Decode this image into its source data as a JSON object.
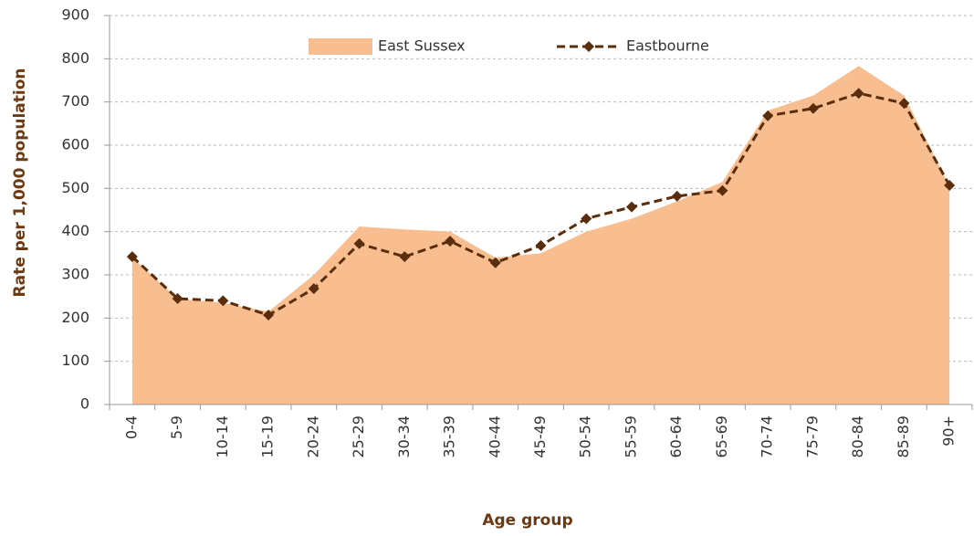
{
  "chart_data": {
    "type": "line",
    "x_label": "Age group",
    "y_label": "Rate per 1,000 population",
    "categories": [
      "0-4",
      "5-9",
      "10-14",
      "15-19",
      "20-24",
      "25-29",
      "30-34",
      "35-39",
      "40-44",
      "45-49",
      "50-54",
      "55-59",
      "60-64",
      "65-69",
      "70-74",
      "75-79",
      "80-84",
      "85-89",
      "90+"
    ],
    "series": [
      {
        "name": "East Sussex",
        "kind": "area",
        "color": "#f9be8f",
        "values": [
          340,
          245,
          235,
          215,
          300,
          412,
          405,
          400,
          340,
          350,
          400,
          430,
          470,
          515,
          680,
          715,
          783,
          715,
          505
        ]
      },
      {
        "name": "Eastbourne",
        "kind": "line",
        "color": "#5a2d0c",
        "values": [
          342,
          245,
          240,
          207,
          268,
          372,
          342,
          378,
          328,
          368,
          430,
          457,
          482,
          495,
          668,
          685,
          720,
          697,
          507
        ]
      }
    ],
    "ylim": [
      0,
      900
    ],
    "yticks": [
      0,
      100,
      200,
      300,
      400,
      500,
      600,
      700,
      800,
      900
    ],
    "grid": true,
    "legend": "top"
  }
}
